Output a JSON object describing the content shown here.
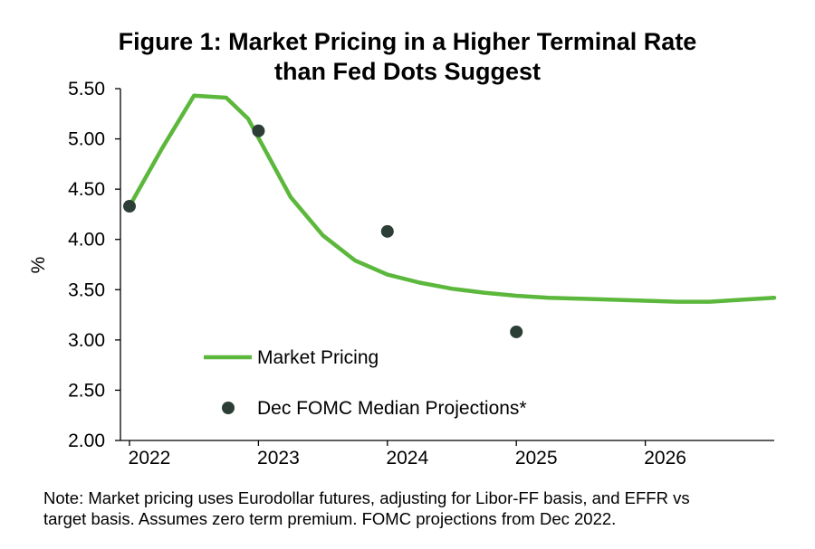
{
  "title": {
    "line1": "Figure 1: Market Pricing in a Higher Terminal Rate",
    "line2": "than Fed Dots Suggest"
  },
  "note": {
    "line1": "Note: Market pricing uses Eurodollar futures, adjusting for Libor-FF basis, and EFFR vs",
    "line2": "target basis. Assumes zero term premium. FOMC projections from Dec 2022."
  },
  "colors": {
    "line": "#5cb83c",
    "dots": "#2c3e35",
    "axis": "#000000"
  },
  "chart_data": {
    "type": "line",
    "ylabel": "%",
    "ylim": [
      2.0,
      5.5
    ],
    "y_ticks": [
      "2.00",
      "2.50",
      "3.00",
      "3.50",
      "4.00",
      "4.50",
      "5.00",
      "5.50"
    ],
    "x_range": [
      2022.0,
      2027.0
    ],
    "x_ticks": [
      "2022",
      "2023",
      "2024",
      "2025",
      "2026"
    ],
    "grid": false,
    "legend_position": "bottom-left",
    "series": [
      {
        "name": "Market Pricing",
        "kind": "line",
        "x": [
          2022.0,
          2022.25,
          2022.5,
          2022.75,
          2022.92,
          2023.25,
          2023.5,
          2023.75,
          2024.0,
          2024.25,
          2024.5,
          2024.75,
          2025.0,
          2025.25,
          2025.5,
          2025.75,
          2026.0,
          2026.25,
          2026.5,
          2026.75,
          2027.0
        ],
        "y": [
          4.33,
          4.9,
          5.43,
          5.41,
          5.2,
          4.42,
          4.04,
          3.79,
          3.65,
          3.57,
          3.51,
          3.47,
          3.44,
          3.42,
          3.41,
          3.4,
          3.39,
          3.38,
          3.38,
          3.4,
          3.42
        ]
      },
      {
        "name": "Dec FOMC Median Projections*",
        "kind": "scatter",
        "x": [
          2022.0,
          2023.0,
          2024.0,
          2025.0
        ],
        "y": [
          4.33,
          5.08,
          4.08,
          3.08
        ]
      }
    ]
  }
}
